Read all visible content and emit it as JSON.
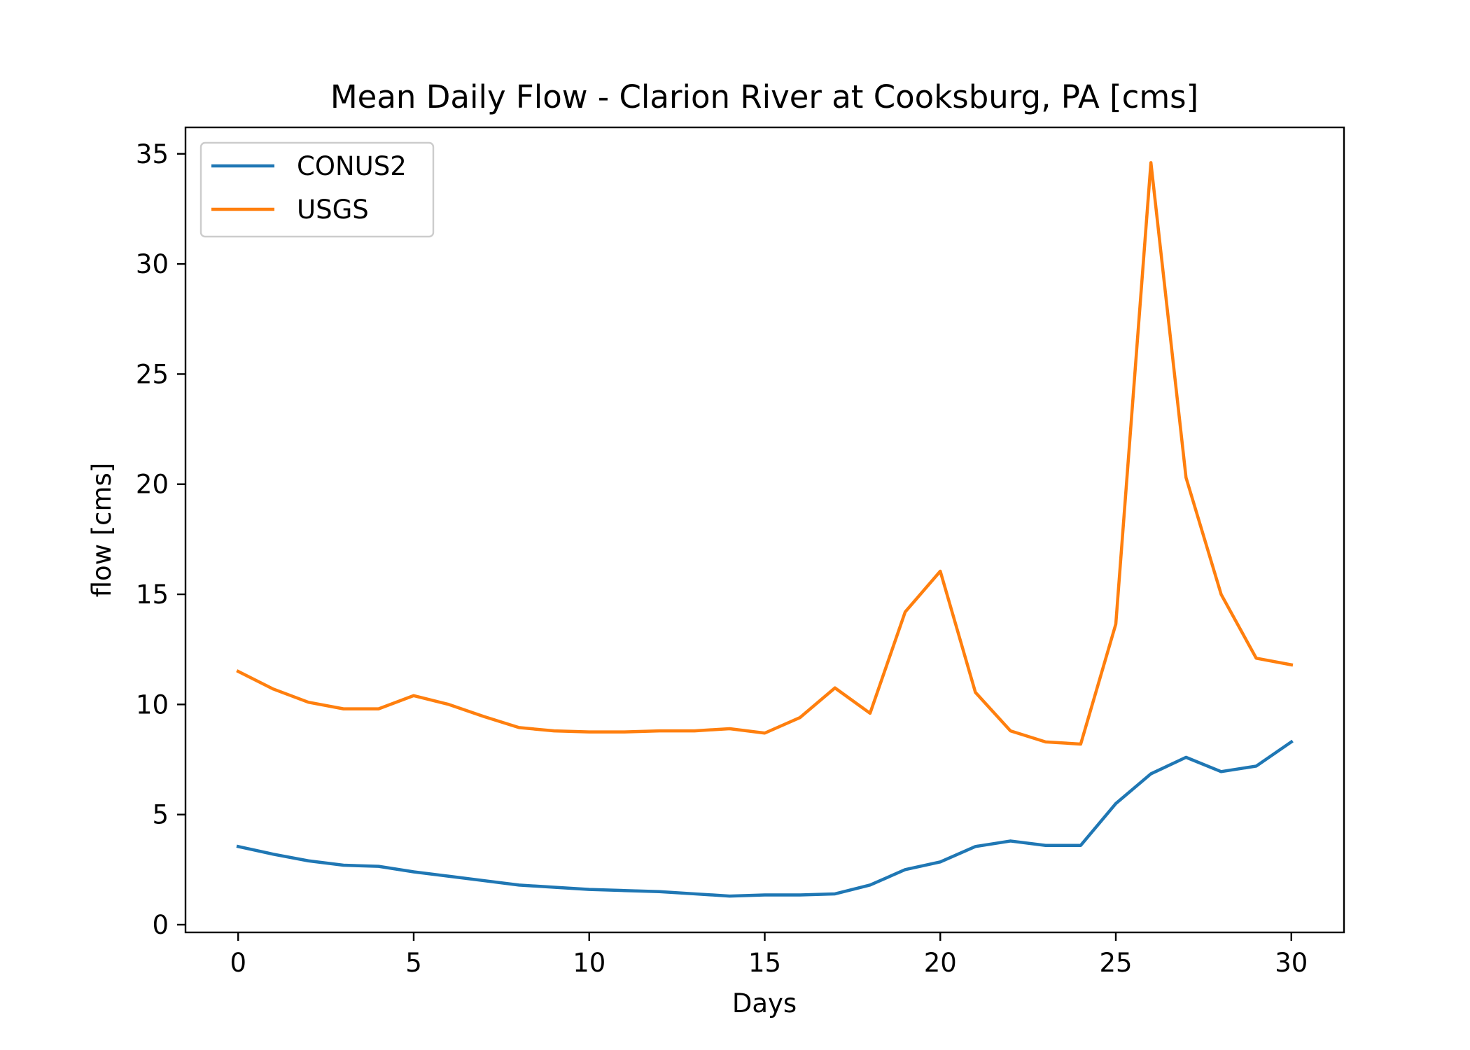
{
  "chart_data": {
    "type": "line",
    "title": "Mean Daily Flow - Clarion River at Cooksburg, PA [cms]",
    "xlabel": "Days",
    "ylabel": "flow [cms]",
    "xlim": [
      -1.5,
      31.5
    ],
    "ylim": [
      -0.35,
      36.2
    ],
    "xticks": [
      0,
      5,
      10,
      15,
      20,
      25,
      30
    ],
    "yticks": [
      0,
      5,
      10,
      15,
      20,
      25,
      30,
      35
    ],
    "x": [
      0,
      1,
      2,
      3,
      4,
      5,
      6,
      7,
      8,
      9,
      10,
      11,
      12,
      13,
      14,
      15,
      16,
      17,
      18,
      19,
      20,
      21,
      22,
      23,
      24,
      25,
      26,
      27,
      28,
      29,
      30
    ],
    "legend_position": "top-left",
    "grid": false,
    "series": [
      {
        "name": "CONUS2",
        "color": "#1f77b4",
        "values": [
          3.55,
          3.2,
          2.9,
          2.7,
          2.65,
          2.4,
          2.2,
          2.0,
          1.8,
          1.7,
          1.6,
          1.55,
          1.5,
          1.4,
          1.3,
          1.35,
          1.35,
          1.4,
          1.8,
          2.5,
          2.85,
          3.55,
          3.8,
          3.6,
          3.6,
          5.5,
          6.85,
          7.6,
          6.95,
          7.2,
          8.3
        ]
      },
      {
        "name": "USGS",
        "color": "#ff7f0e",
        "values": [
          11.5,
          10.7,
          10.1,
          9.8,
          9.8,
          10.4,
          10.0,
          9.45,
          8.95,
          8.8,
          8.75,
          8.75,
          8.8,
          8.8,
          8.9,
          8.7,
          9.4,
          10.75,
          9.6,
          14.2,
          16.05,
          10.55,
          8.8,
          8.3,
          8.2,
          13.65,
          34.6,
          20.3,
          15.0,
          12.1,
          11.8
        ]
      }
    ]
  }
}
